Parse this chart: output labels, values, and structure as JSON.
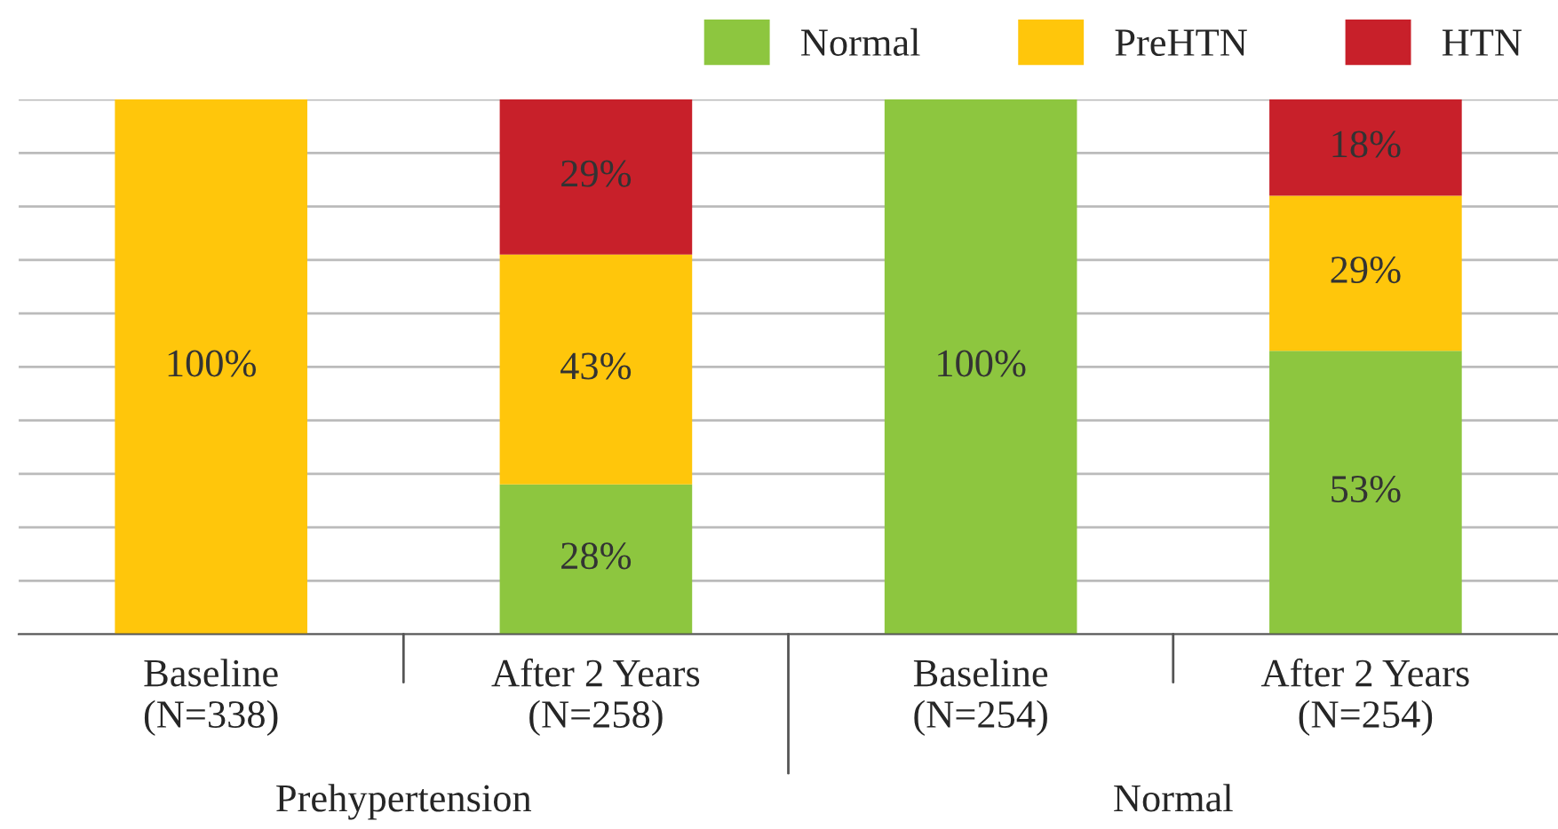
{
  "chart_data": {
    "type": "bar",
    "stacked": true,
    "categories": [
      "Baseline\n(N=338)",
      "After 2 Years\n(N=258)",
      "Baseline\n(N=254)",
      "After 2 Years\n(N=254)"
    ],
    "series": [
      {
        "name": "Normal",
        "color": "#8dc63f",
        "values": [
          0,
          28,
          100,
          53
        ],
        "value_labels": [
          null,
          "28%",
          "100%",
          "53%"
        ]
      },
      {
        "name": "PreHTN",
        "color": "#ffc60b",
        "values": [
          100,
          43,
          0,
          29
        ],
        "value_labels": [
          "100%",
          "43%",
          null,
          "29%"
        ]
      },
      {
        "name": "HTN",
        "color": "#c8202a",
        "values": [
          0,
          29,
          0,
          18
        ],
        "value_labels": [
          null,
          "29%",
          null,
          "18%"
        ]
      }
    ],
    "ylim": [
      0,
      100
    ],
    "yticks": [
      {
        "value": 0,
        "label": null
      },
      {
        "value": 10,
        "label": null
      },
      {
        "value": 20,
        "label": null
      },
      {
        "value": 30,
        "label": null
      },
      {
        "value": 40,
        "label": null
      },
      {
        "value": 50,
        "label": null
      },
      {
        "value": 60,
        "label": null
      },
      {
        "value": 70,
        "label": null
      },
      {
        "value": 80,
        "label": null
      },
      {
        "value": 90,
        "label": null
      },
      {
        "value": 100,
        "label": null
      }
    ],
    "tick_labels": "x",
    "grid": "y",
    "legend": "top right",
    "annotations": [
      "Prehypertension",
      "Normal"
    ]
  }
}
